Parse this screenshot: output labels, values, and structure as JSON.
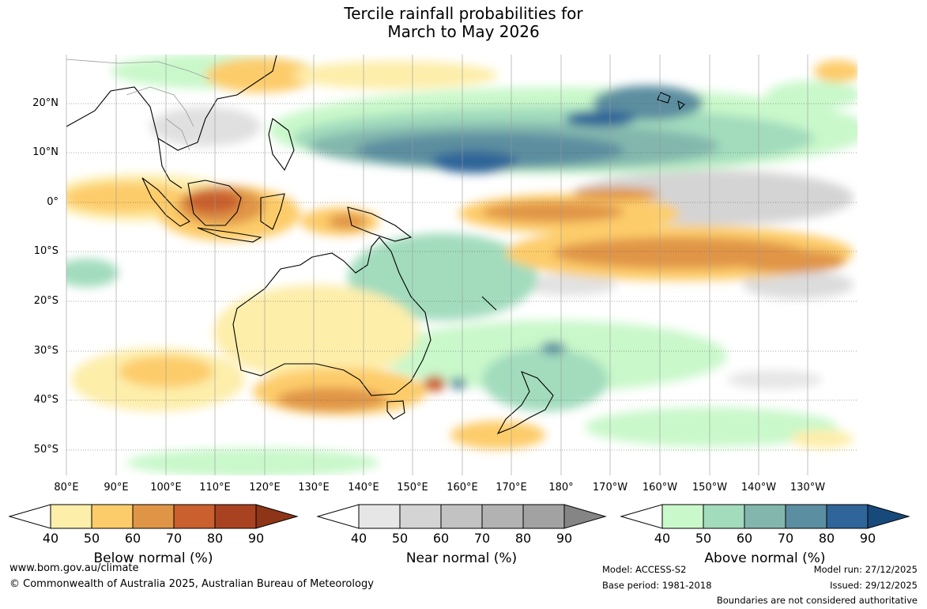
{
  "title": {
    "line1": "Tercile rainfall probabilities for",
    "line2": "March to May 2026"
  },
  "axes": {
    "lat_labels": [
      "20°N",
      "10°N",
      "0°",
      "10°S",
      "20°S",
      "30°S",
      "40°S",
      "50°S"
    ],
    "lon_labels": [
      "80°E",
      "90°E",
      "100°E",
      "110°E",
      "120°E",
      "130°E",
      "140°E",
      "150°E",
      "160°E",
      "170°E",
      "180°",
      "170°W",
      "160°W",
      "150°W",
      "140°W",
      "130°W"
    ]
  },
  "legend": {
    "ticks": [
      "40",
      "50",
      "60",
      "70",
      "80",
      "90"
    ],
    "below": {
      "label": "Below normal (%)",
      "colors": [
        "#fdeeaa",
        "#fdcc6a",
        "#e09546",
        "#c9602e",
        "#a94220"
      ],
      "extend_color": "#8e3417"
    },
    "near": {
      "label": "Near normal (%)",
      "colors": [
        "#e6e6e6",
        "#d4d4d4",
        "#c2c2c2",
        "#b2b2b2",
        "#a2a2a2"
      ],
      "extend_color": "#858585"
    },
    "above": {
      "label": "Above normal (%)",
      "colors": [
        "#c9f8ca",
        "#a2dcbd",
        "#83b7ad",
        "#5b8ea0",
        "#2f6598"
      ],
      "extend_color": "#174a7a"
    }
  },
  "footer": {
    "website": "www.bom.gov.au/climate",
    "copyright": "© Commonwealth of Australia 2025, Australian Bureau of Meteorology",
    "model": "Model: ACCESS-S2",
    "base_period": "Base period: 1981-2018",
    "model_run": "Model run: 27/12/2025",
    "issued": "Issued: 29/12/2025",
    "disclaimer": "Boundaries are not considered authoritative"
  }
}
